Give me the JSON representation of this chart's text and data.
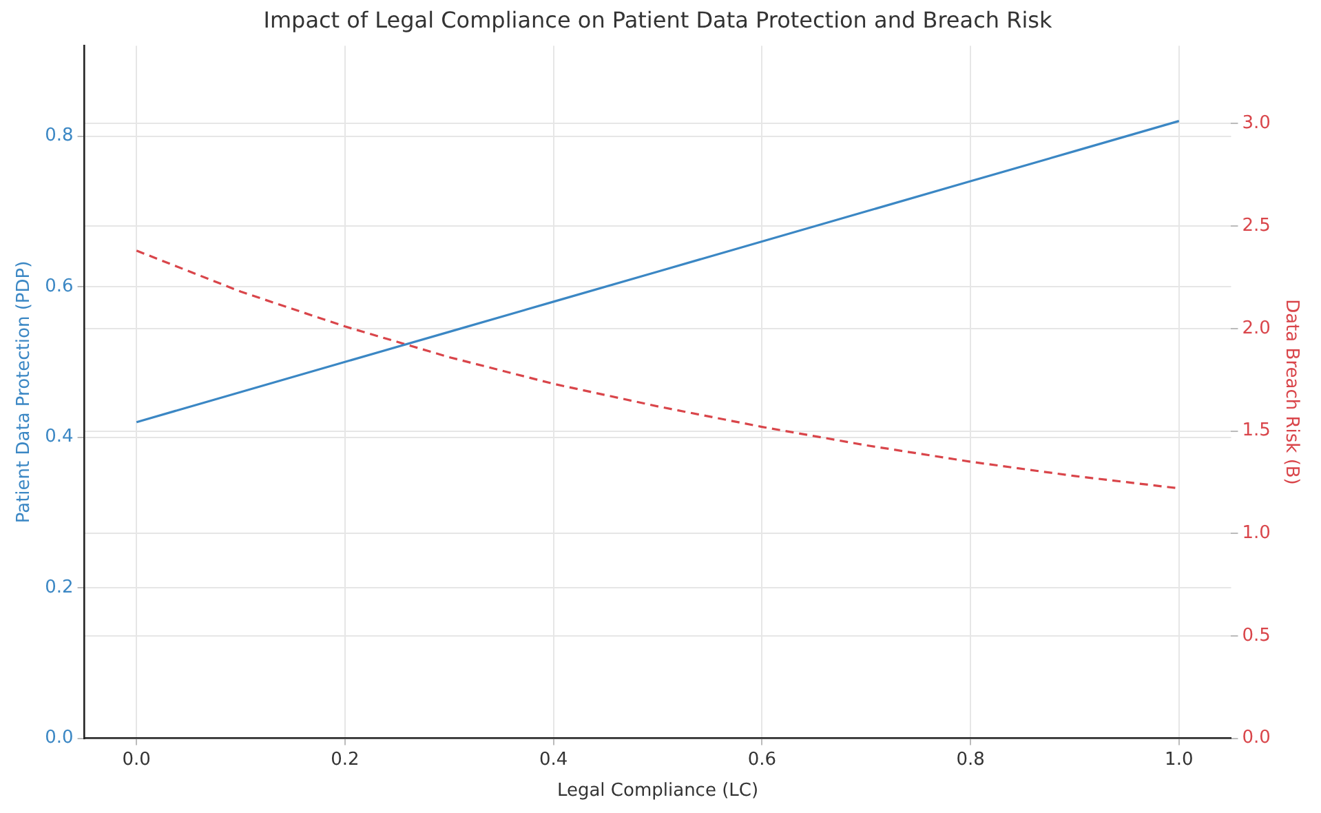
{
  "chart_data": {
    "type": "line",
    "title": "Impact of Legal Compliance on Patient Data Protection and Breach Risk",
    "xlabel": "Legal Compliance (LC)",
    "ylabel": "Patient Data Protection (PDP)",
    "y2label": "Data Breach Risk (B)",
    "x": [
      0,
      0.1,
      0.2,
      0.3,
      0.4,
      0.5,
      0.6,
      0.7,
      0.8,
      0.9,
      1.0
    ],
    "xlim": [
      -0.05,
      1.05
    ],
    "xticks": [
      {
        "value": 0,
        "label": "0.0"
      },
      {
        "value": 0.2,
        "label": "0.2"
      },
      {
        "value": 0.4,
        "label": "0.4"
      },
      {
        "value": 0.6,
        "label": "0.6"
      },
      {
        "value": 0.8,
        "label": "0.8"
      },
      {
        "value": 1,
        "label": "1.0"
      }
    ],
    "ylim": [
      0,
      0.92
    ],
    "yticks": [
      {
        "value": 0,
        "label": "0.0"
      },
      {
        "value": 0.2,
        "label": "0.2"
      },
      {
        "value": 0.4,
        "label": "0.4"
      },
      {
        "value": 0.6,
        "label": "0.6"
      },
      {
        "value": 0.8,
        "label": "0.8"
      }
    ],
    "y2lim": [
      0,
      3.38
    ],
    "y2ticks": [
      {
        "value": 0,
        "label": "0.0"
      },
      {
        "value": 0.5,
        "label": "0.5"
      },
      {
        "value": 1,
        "label": "1.0"
      },
      {
        "value": 1.5,
        "label": "1.5"
      },
      {
        "value": 2,
        "label": "2.0"
      },
      {
        "value": 2.5,
        "label": "2.5"
      },
      {
        "value": 3,
        "label": "3.0"
      }
    ],
    "grid": true,
    "marker": "none",
    "series": [
      {
        "color": "#3b87c4",
        "line_style": "solid",
        "values": [
          0.42,
          0.46,
          0.5,
          0.54,
          0.58,
          0.62,
          0.66,
          0.7,
          0.74,
          0.78,
          0.82
        ]
      },
      {
        "color": "#d9454a",
        "line_style": "dashed",
        "axis": "y2",
        "values": [
          2.38,
          2.18,
          2.01,
          1.86,
          1.73,
          1.62,
          1.52,
          1.43,
          1.35,
          1.28,
          1.22
        ]
      }
    ]
  }
}
